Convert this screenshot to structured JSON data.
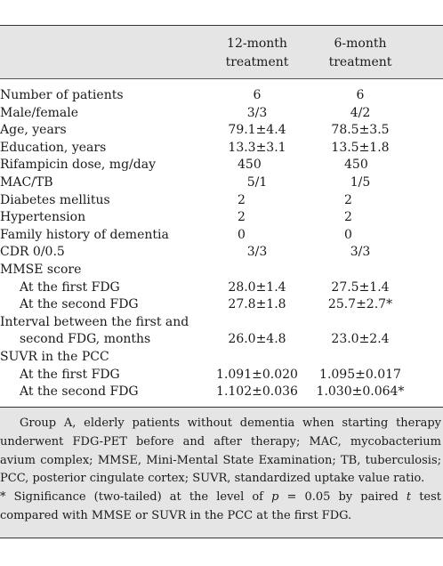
{
  "table": {
    "columns": [
      "12-month treatment",
      "6-month treatment"
    ],
    "col1_line1": "12-month",
    "col1_line2": "treatment",
    "col2_line1": "6-month",
    "col2_line2": "treatment",
    "rows": [
      {
        "label": "Number of patients",
        "v1": "6",
        "v2": "6"
      },
      {
        "label": "Male/female",
        "v1": "3/3",
        "v2": "4/2"
      },
      {
        "label": "Age, years",
        "v1": "79.1±4.4",
        "v2": "78.5±3.5"
      },
      {
        "label": "Education, years",
        "v1": "13.3±3.1",
        "v2": "13.5±1.8"
      },
      {
        "label": "Rifampicin dose, mg/day",
        "v1": "450",
        "v2": "450"
      },
      {
        "label": "MAC/TB",
        "v1": "5/1",
        "v2": "1/5"
      },
      {
        "label": "Diabetes mellitus",
        "v1": "2",
        "v2": "2"
      },
      {
        "label": "Hypertension",
        "v1": "2",
        "v2": "2"
      },
      {
        "label": "Family history of dementia",
        "v1": "0",
        "v2": "0"
      },
      {
        "label": "CDR 0/0.5",
        "v1": "3/3",
        "v2": "3/3"
      },
      {
        "label": "MMSE score",
        "v1": "",
        "v2": ""
      },
      {
        "label": "At the first FDG",
        "v1": "28.0±1.4",
        "v2": "27.5±1.4"
      },
      {
        "label": "At the second FDG",
        "v1": "27.8±1.8",
        "v2": "25.7±2.7*"
      },
      {
        "label": "Interval between the first and",
        "v1": "",
        "v2": ""
      },
      {
        "label": "second FDG, months",
        "v1": "26.0±4.8",
        "v2": "23.0±2.4"
      },
      {
        "label": "SUVR in the PCC",
        "v1": "",
        "v2": ""
      },
      {
        "label": "At the first FDG",
        "v1": "1.091±0.020",
        "v2": "1.095±0.017"
      },
      {
        "label": "At the second FDG",
        "v1": "1.102±0.036",
        "v2": "1.030±0.064*"
      }
    ]
  },
  "notes": {
    "abbrev": "Group A, elderly patients without dementia when starting therapy underwent FDG-PET before and after therapy; MAC, mycobacterium avium complex; MMSE, Mini-Mental State Examination; TB, tuberculosis; PCC, posterior cingulate cortex; SUVR, standardized uptake value ratio.",
    "sig_a": "* Significance (two-tailed) at the level of ",
    "sig_p": "p",
    "sig_b": " = 0.05 by paired ",
    "sig_t": "t",
    "sig_c": " test compared with MMSE or SUVR in the PCC at the first FDG."
  }
}
